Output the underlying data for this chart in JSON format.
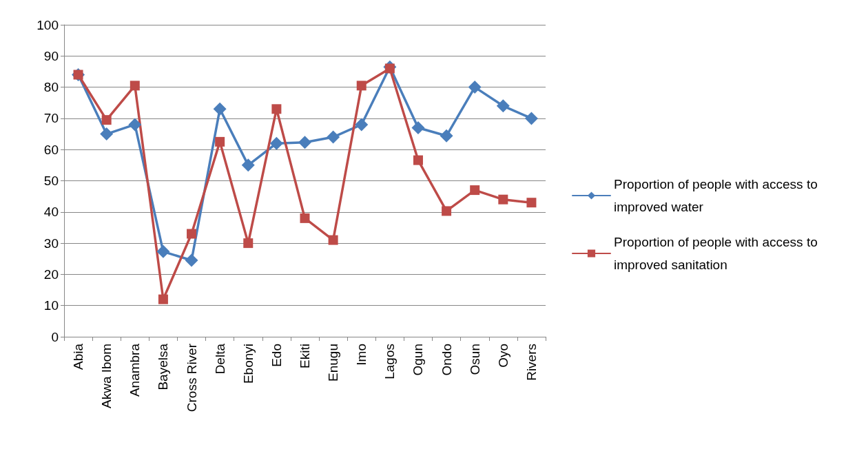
{
  "chart_data": {
    "type": "line",
    "categories": [
      "Abia",
      "Akwa Ibom",
      "Anambra",
      "Bayelsa",
      "Cross River",
      "Delta",
      "Ebonyi",
      "Edo",
      "Ekiti",
      "Enugu",
      "Imo",
      "Lagos",
      "Ogun",
      "Ondo",
      "Osun",
      "Oyo",
      "Rivers"
    ],
    "series": [
      {
        "name": "Proportion of people with access to improved water",
        "color": "#4a7ebb",
        "marker": "diamond",
        "values": [
          84,
          65,
          68,
          27.3,
          24.5,
          73,
          55,
          62,
          62.3,
          64,
          68,
          86.5,
          67,
          64.4,
          80,
          74,
          70
        ]
      },
      {
        "name": "Proportion of people with access to improved sanitation",
        "color": "#be4b48",
        "marker": "square",
        "values": [
          84,
          69.5,
          80.5,
          12,
          33,
          62.5,
          30,
          73,
          38,
          31,
          80.5,
          86,
          56.6,
          40.3,
          47,
          44,
          43
        ]
      }
    ],
    "ylim": [
      0,
      100
    ],
    "yticks": [
      0,
      10,
      20,
      30,
      40,
      50,
      60,
      70,
      80,
      90,
      100
    ],
    "grid": "y",
    "legend": "right",
    "line_style": "solid"
  }
}
